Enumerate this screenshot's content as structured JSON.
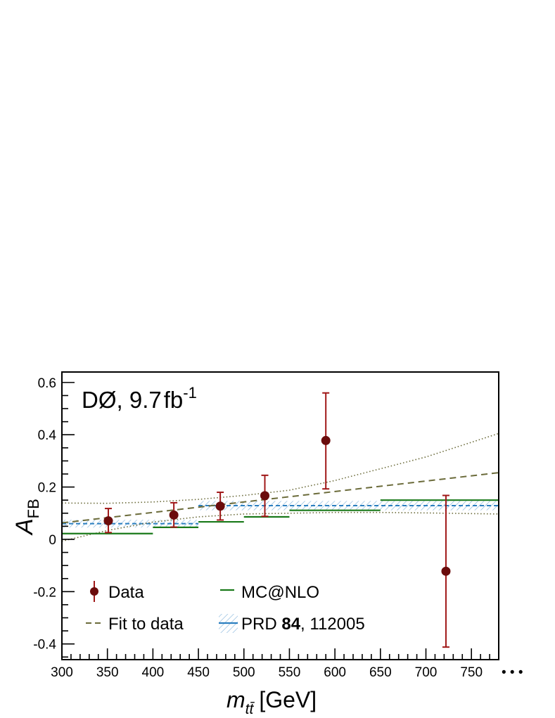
{
  "chart_data": {
    "type": "scatter",
    "annotation": {
      "text": "DØ, 9.7",
      "unit": "fb",
      "exponent": "-1"
    },
    "xlabel": {
      "main": "m",
      "subscript": "tt̄",
      "unit": "[GeV]"
    },
    "ylabel": {
      "main": "A",
      "subscript": "FB"
    },
    "xlim": [
      300,
      780
    ],
    "ylim": [
      -0.46,
      0.64
    ],
    "x_ticks": [
      "300",
      "350",
      "400",
      "450",
      "500",
      "550",
      "600",
      "650",
      "700",
      "750"
    ],
    "x_overflow_marker": "• • •",
    "y_ticks": [
      "-0.4",
      "-0.2",
      "0",
      "0.2",
      "0.4",
      "0.6"
    ],
    "y_tick_values": [
      -0.4,
      -0.2,
      0,
      0.2,
      0.4,
      0.6
    ],
    "series": [
      {
        "name": "Data",
        "kind": "points",
        "color": "#6b0c0c",
        "errorbar_color": "#a01818",
        "points": [
          {
            "x": 351,
            "y": 0.071,
            "ylo": 0.026,
            "yhi": 0.118
          },
          {
            "x": 423,
            "y": 0.093,
            "ylo": 0.047,
            "yhi": 0.14
          },
          {
            "x": 474,
            "y": 0.127,
            "ylo": 0.074,
            "yhi": 0.18
          },
          {
            "x": 523,
            "y": 0.167,
            "ylo": 0.088,
            "yhi": 0.245
          },
          {
            "x": 590,
            "y": 0.378,
            "ylo": 0.193,
            "yhi": 0.56
          },
          {
            "x": 722,
            "y": -0.122,
            "ylo": -0.412,
            "yhi": 0.168
          }
        ]
      },
      {
        "name": "MC@NLO",
        "kind": "steps",
        "color": "#1a7a1a",
        "bins": [
          {
            "x0": 300,
            "x1": 400,
            "y": 0.022
          },
          {
            "x0": 400,
            "x1": 450,
            "y": 0.046
          },
          {
            "x0": 450,
            "x1": 500,
            "y": 0.067
          },
          {
            "x0": 500,
            "x1": 550,
            "y": 0.086
          },
          {
            "x0": 550,
            "x1": 650,
            "y": 0.111
          },
          {
            "x0": 650,
            "x1": 780,
            "y": 0.15
          }
        ]
      },
      {
        "name": "Fit to data",
        "kind": "fit",
        "color": "#6b6b3a",
        "line": {
          "x0": 300,
          "y0": 0.063,
          "x1": 780,
          "y1": 0.255
        },
        "band_upper": [
          [
            300,
            0.139
          ],
          [
            350,
            0.138
          ],
          [
            400,
            0.143
          ],
          [
            450,
            0.153
          ],
          [
            500,
            0.168
          ],
          [
            550,
            0.188
          ],
          [
            600,
            0.225
          ],
          [
            650,
            0.27
          ],
          [
            700,
            0.315
          ],
          [
            780,
            0.405
          ]
        ],
        "band_lower": [
          [
            300,
            -0.007
          ],
          [
            350,
            0.034
          ],
          [
            400,
            0.066
          ],
          [
            450,
            0.086
          ],
          [
            500,
            0.097
          ],
          [
            550,
            0.1
          ],
          [
            600,
            0.103
          ],
          [
            650,
            0.103
          ],
          [
            700,
            0.101
          ],
          [
            780,
            0.097
          ]
        ]
      },
      {
        "name": "PRD",
        "name_volume": "84",
        "name_page": ", 112005",
        "kind": "band",
        "color": "#2b7fc0",
        "hatch_color": "#7aaed8",
        "bins": [
          {
            "x0": 300,
            "x1": 450,
            "y": 0.06,
            "lo": 0.045,
            "hi": 0.075
          },
          {
            "x0": 450,
            "x1": 780,
            "y": 0.129,
            "lo": 0.111,
            "hi": 0.147
          }
        ]
      }
    ],
    "legend": [
      {
        "label": "Data",
        "series": "Data"
      },
      {
        "label": "MC@NLO",
        "series": "MC@NLO"
      },
      {
        "label": "Fit to data",
        "series": "Fit to data"
      },
      {
        "label_main": "PRD ",
        "label_bold": "84",
        "label_rest": ", 112005",
        "series": "PRD"
      }
    ]
  }
}
